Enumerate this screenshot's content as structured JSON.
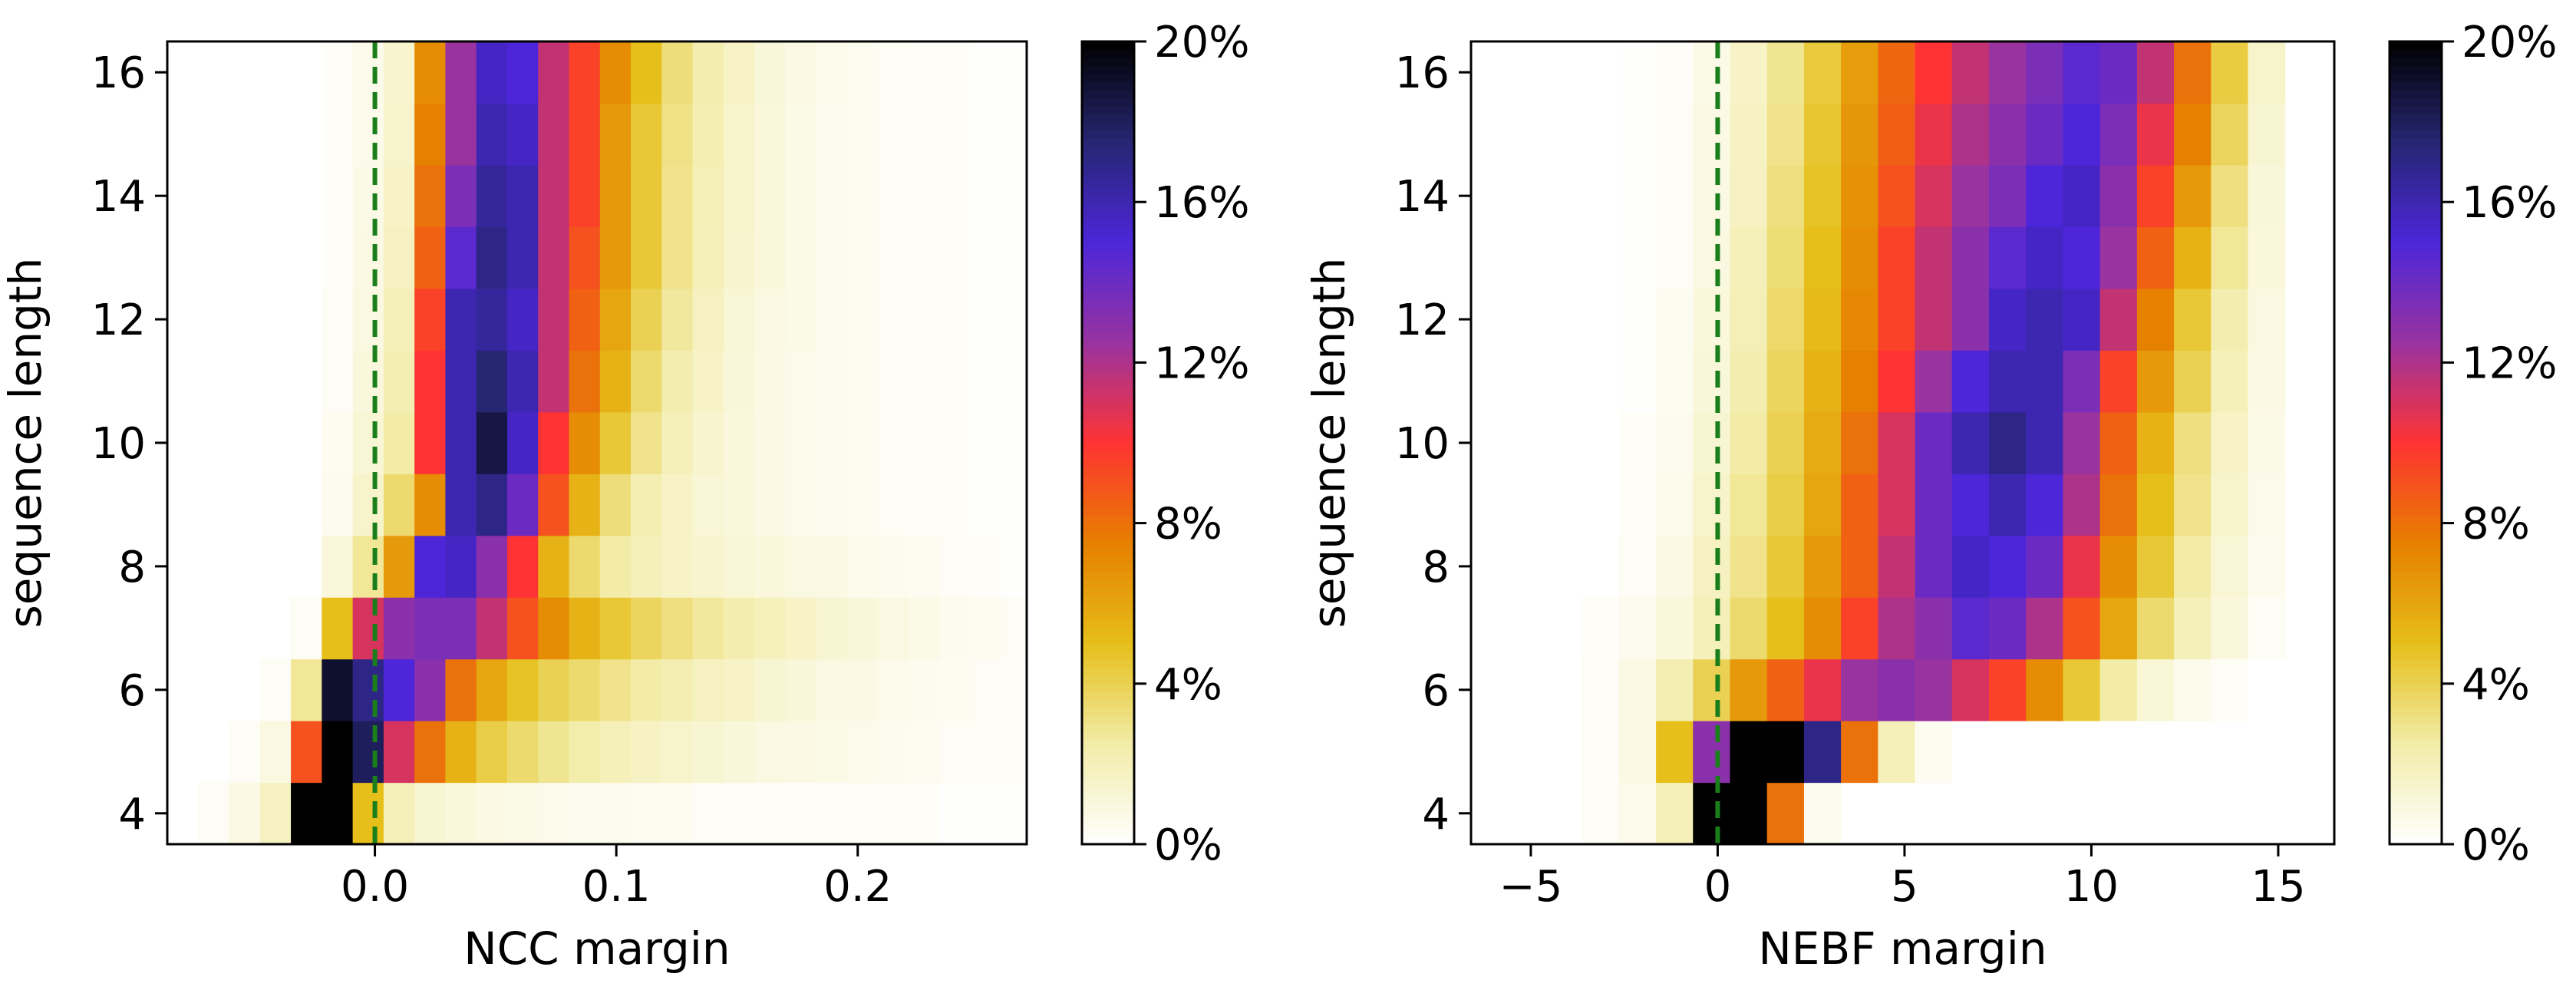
{
  "chart_data": [
    {
      "type": "heatmap",
      "xlabel": "NCC margin",
      "ylabel": "sequence length",
      "xlim": [
        -0.086,
        0.27
      ],
      "ylim": [
        3.5,
        16.5
      ],
      "x_ticks": [
        0.0,
        0.1,
        0.2
      ],
      "x_tick_labels": [
        "0.0",
        "0.1",
        "0.2"
      ],
      "y_ticks": [
        4,
        6,
        8,
        10,
        12,
        14,
        16
      ],
      "y_tick_labels": [
        "4",
        "6",
        "8",
        "10",
        "12",
        "14",
        "16"
      ],
      "x_bin_start": -0.086,
      "x_bin_width": 0.0128,
      "y_values": [
        4,
        5,
        6,
        7,
        8,
        9,
        10,
        11,
        12,
        13,
        14,
        15,
        16
      ],
      "value_unit": "percent of sequences per length",
      "reference_line": {
        "x": 0.0,
        "style": "dashed",
        "color": "#1a7f1a"
      },
      "grid": false,
      "values": [
        [
          0,
          0.3,
          0.8,
          1.8,
          20,
          20,
          5,
          2,
          1.3,
          1,
          0.8,
          0.7,
          0.6,
          0.5,
          0.5,
          0.4,
          0.4,
          0.3,
          0.3,
          0.3,
          0.2,
          0.2,
          0.2,
          0.2,
          0.2,
          0.1,
          0.1,
          0.1
        ],
        [
          0,
          0,
          0.3,
          0.9,
          9,
          20,
          18,
          11,
          8,
          5.5,
          4.2,
          3.5,
          2.9,
          2.4,
          2,
          1.7,
          1.5,
          1.3,
          1.1,
          0.9,
          0.8,
          0.7,
          0.6,
          0.5,
          0.4,
          0.3,
          0.3,
          0.2
        ],
        [
          0,
          0,
          0,
          0.3,
          2.8,
          19,
          17,
          15,
          13,
          8,
          6,
          4.8,
          4,
          3.5,
          3,
          2.5,
          2.2,
          1.8,
          1.6,
          1.3,
          1.1,
          0.9,
          0.8,
          0.6,
          0.5,
          0.4,
          0.3,
          0.2
        ],
        [
          0,
          0,
          0,
          0,
          0.3,
          5,
          11,
          13,
          13.5,
          13.5,
          11.5,
          9,
          7,
          5.5,
          4.5,
          3.8,
          3.2,
          2.7,
          2.3,
          1.9,
          1.6,
          1.3,
          1.1,
          0.9,
          0.7,
          0.5,
          0.4,
          0.3
        ],
        [
          0,
          0,
          0,
          0,
          0,
          1,
          2.8,
          6.5,
          15,
          15.5,
          13,
          10,
          5.5,
          3.5,
          2.5,
          2,
          1.6,
          1.4,
          1.2,
          1,
          0.9,
          0.8,
          0.6,
          0.5,
          0.4,
          0.3,
          0.2,
          0.1
        ],
        [
          0,
          0,
          0,
          0,
          0,
          0.5,
          1.5,
          3.5,
          7,
          16,
          17,
          14,
          9,
          5.5,
          3.3,
          2.2,
          1.6,
          1.2,
          1,
          0.8,
          0.6,
          0.5,
          0.4,
          0.3,
          0.2,
          0.2,
          0.1,
          0.1
        ],
        [
          0,
          0,
          0,
          0,
          0,
          0.4,
          1.2,
          2.5,
          10,
          16,
          18.5,
          15.5,
          10,
          7,
          4.5,
          3,
          2,
          1.4,
          1,
          0.8,
          0.6,
          0.5,
          0.4,
          0.3,
          0.2,
          0.2,
          0.1,
          0.1
        ],
        [
          0,
          0,
          0,
          0,
          0,
          0.3,
          1,
          2.2,
          10,
          16,
          17.5,
          16,
          11.5,
          8,
          5.5,
          3.5,
          2.3,
          1.6,
          1.1,
          0.8,
          0.6,
          0.5,
          0.4,
          0.3,
          0.2,
          0.2,
          0.1,
          0.1
        ],
        [
          0,
          0,
          0,
          0,
          0,
          0.3,
          0.9,
          2,
          9.5,
          16,
          16.5,
          15.5,
          11.5,
          8.5,
          6,
          4,
          2.7,
          1.8,
          1.2,
          0.9,
          0.7,
          0.5,
          0.4,
          0.3,
          0.2,
          0.2,
          0.1,
          0.1
        ],
        [
          0,
          0,
          0,
          0,
          0,
          0.2,
          0.8,
          1.8,
          8.5,
          14.5,
          17,
          16,
          11.5,
          9,
          6.5,
          4.5,
          3,
          2,
          1.4,
          1,
          0.7,
          0.5,
          0.4,
          0.3,
          0.2,
          0.2,
          0.1,
          0.1
        ],
        [
          0,
          0,
          0,
          0,
          0,
          0.2,
          0.7,
          1.6,
          8,
          13.5,
          16.5,
          16,
          11.5,
          9.5,
          6.5,
          4.5,
          3,
          2.1,
          1.5,
          1,
          0.7,
          0.5,
          0.4,
          0.3,
          0.2,
          0.2,
          0.1,
          0.1
        ],
        [
          0,
          0,
          0,
          0,
          0,
          0.2,
          0.6,
          1.5,
          7.5,
          12.5,
          16,
          15.5,
          11.5,
          9.5,
          6.5,
          4.5,
          3.1,
          2.2,
          1.5,
          1,
          0.7,
          0.5,
          0.4,
          0.3,
          0.2,
          0.2,
          0.1,
          0.1
        ],
        [
          0,
          0,
          0,
          0,
          0,
          0.2,
          0.6,
          1.4,
          7,
          12.5,
          15.5,
          15,
          11.5,
          9.5,
          7,
          5,
          3.3,
          2.3,
          1.6,
          1.1,
          0.8,
          0.6,
          0.4,
          0.3,
          0.2,
          0.2,
          0.1,
          0.1
        ]
      ]
    },
    {
      "type": "heatmap",
      "xlabel": "NEBF margin",
      "ylabel": "sequence length",
      "xlim": [
        -6.6,
        16.5
      ],
      "ylim": [
        3.5,
        16.5
      ],
      "x_ticks": [
        -5,
        0,
        5,
        10,
        15
      ],
      "x_tick_labels": [
        "−5",
        "0",
        "5",
        "10",
        "15"
      ],
      "y_ticks": [
        4,
        6,
        8,
        10,
        12,
        14,
        16
      ],
      "y_tick_labels": [
        "4",
        "6",
        "8",
        "10",
        "12",
        "14",
        "16"
      ],
      "x_bin_start": -6.6,
      "x_bin_width": 0.99,
      "y_values": [
        4,
        5,
        6,
        7,
        8,
        9,
        10,
        11,
        12,
        13,
        14,
        15,
        16
      ],
      "value_unit": "percent of sequences per length",
      "reference_line": {
        "x": 0,
        "style": "dashed",
        "color": "#1a7f1a"
      },
      "grid": false,
      "values": [
        [
          0,
          0,
          0,
          0.3,
          0.6,
          2,
          20,
          20,
          8,
          0.5,
          0,
          0,
          0,
          0,
          0,
          0,
          0,
          0,
          0,
          0,
          0,
          0,
          0
        ],
        [
          0,
          0,
          0,
          0.3,
          0.8,
          5,
          13,
          20,
          20,
          17,
          8,
          2,
          0.4,
          0,
          0,
          0,
          0,
          0,
          0,
          0,
          0,
          0,
          0
        ],
        [
          0,
          0,
          0,
          0.3,
          0.8,
          2.2,
          4,
          6.5,
          8.5,
          10.5,
          12.5,
          13,
          12.5,
          11,
          9.5,
          7,
          4.5,
          2.5,
          1.2,
          0.6,
          0.3,
          0,
          0
        ],
        [
          0,
          0,
          0,
          0.2,
          0.5,
          1,
          2,
          3.5,
          5,
          7,
          9.5,
          12,
          13,
          14.5,
          14,
          12,
          9,
          6,
          3.5,
          2,
          1,
          0.3,
          0
        ],
        [
          0,
          0,
          0,
          0,
          0.3,
          0.8,
          1.8,
          3,
          4.5,
          6.5,
          8.5,
          11.5,
          14,
          15.5,
          15,
          14,
          10.5,
          7,
          4.5,
          2.5,
          1.2,
          0.5,
          0
        ],
        [
          0,
          0,
          0,
          0,
          0.2,
          0.6,
          1.5,
          2.8,
          4.2,
          6,
          8.5,
          11,
          14,
          15,
          16,
          15,
          12,
          8,
          5,
          3,
          1.5,
          0.6,
          0
        ],
        [
          0,
          0,
          0,
          0,
          0.2,
          0.5,
          1.3,
          2.5,
          4,
          5.8,
          8,
          11,
          14,
          16,
          17,
          16,
          12.5,
          8.5,
          5.5,
          3.2,
          1.6,
          0.7,
          0
        ],
        [
          0,
          0,
          0,
          0,
          0.1,
          0.4,
          1.1,
          2.3,
          3.8,
          5.5,
          7.5,
          10,
          12.5,
          15,
          16,
          16,
          13.5,
          9.5,
          6.5,
          4,
          2,
          0.8,
          0
        ],
        [
          0,
          0,
          0,
          0,
          0.1,
          0.4,
          1,
          2.1,
          3.6,
          5.2,
          7.2,
          9.5,
          11.5,
          13,
          15.5,
          16,
          15.5,
          11.5,
          7.5,
          4.5,
          2.3,
          0.9,
          0
        ],
        [
          0,
          0,
          0,
          0,
          0.1,
          0.3,
          0.9,
          2,
          3.4,
          5,
          7,
          9.5,
          11.5,
          13,
          14.5,
          15.5,
          15,
          12.5,
          8.5,
          5.5,
          2.8,
          1,
          0
        ],
        [
          0,
          0,
          0,
          0,
          0.1,
          0.3,
          0.8,
          1.8,
          3.2,
          4.8,
          6.8,
          9,
          11,
          12.5,
          13.5,
          15,
          15.5,
          13,
          9.5,
          6.5,
          3.2,
          1.1,
          0
        ],
        [
          0,
          0,
          0,
          0,
          0.1,
          0.3,
          0.8,
          1.7,
          3,
          4.6,
          6.6,
          8.6,
          10.5,
          12,
          13,
          14,
          15,
          13.5,
          10.5,
          7.5,
          3.8,
          1.3,
          0
        ],
        [
          0,
          0,
          0,
          0,
          0.1,
          0.2,
          0.7,
          1.6,
          2.9,
          4.4,
          6.3,
          8.3,
          10,
          11.5,
          12.5,
          13.5,
          14.5,
          14,
          11.5,
          8,
          4.3,
          1.5,
          0
        ]
      ]
    }
  ],
  "colorbar": {
    "range": [
      0,
      20
    ],
    "tick_values": [
      0,
      4,
      8,
      12,
      16,
      20
    ],
    "tick_labels": [
      "0%",
      "4%",
      "8%",
      "12%",
      "16%",
      "20%"
    ],
    "colormap": "CMRmap_r",
    "colormap_stops": [
      "#ffffff",
      "#f2eca8",
      "#e6bf1a",
      "#e68000",
      "#ff3333",
      "#9933a0",
      "#4d26d9",
      "#262673",
      "#000000"
    ]
  }
}
